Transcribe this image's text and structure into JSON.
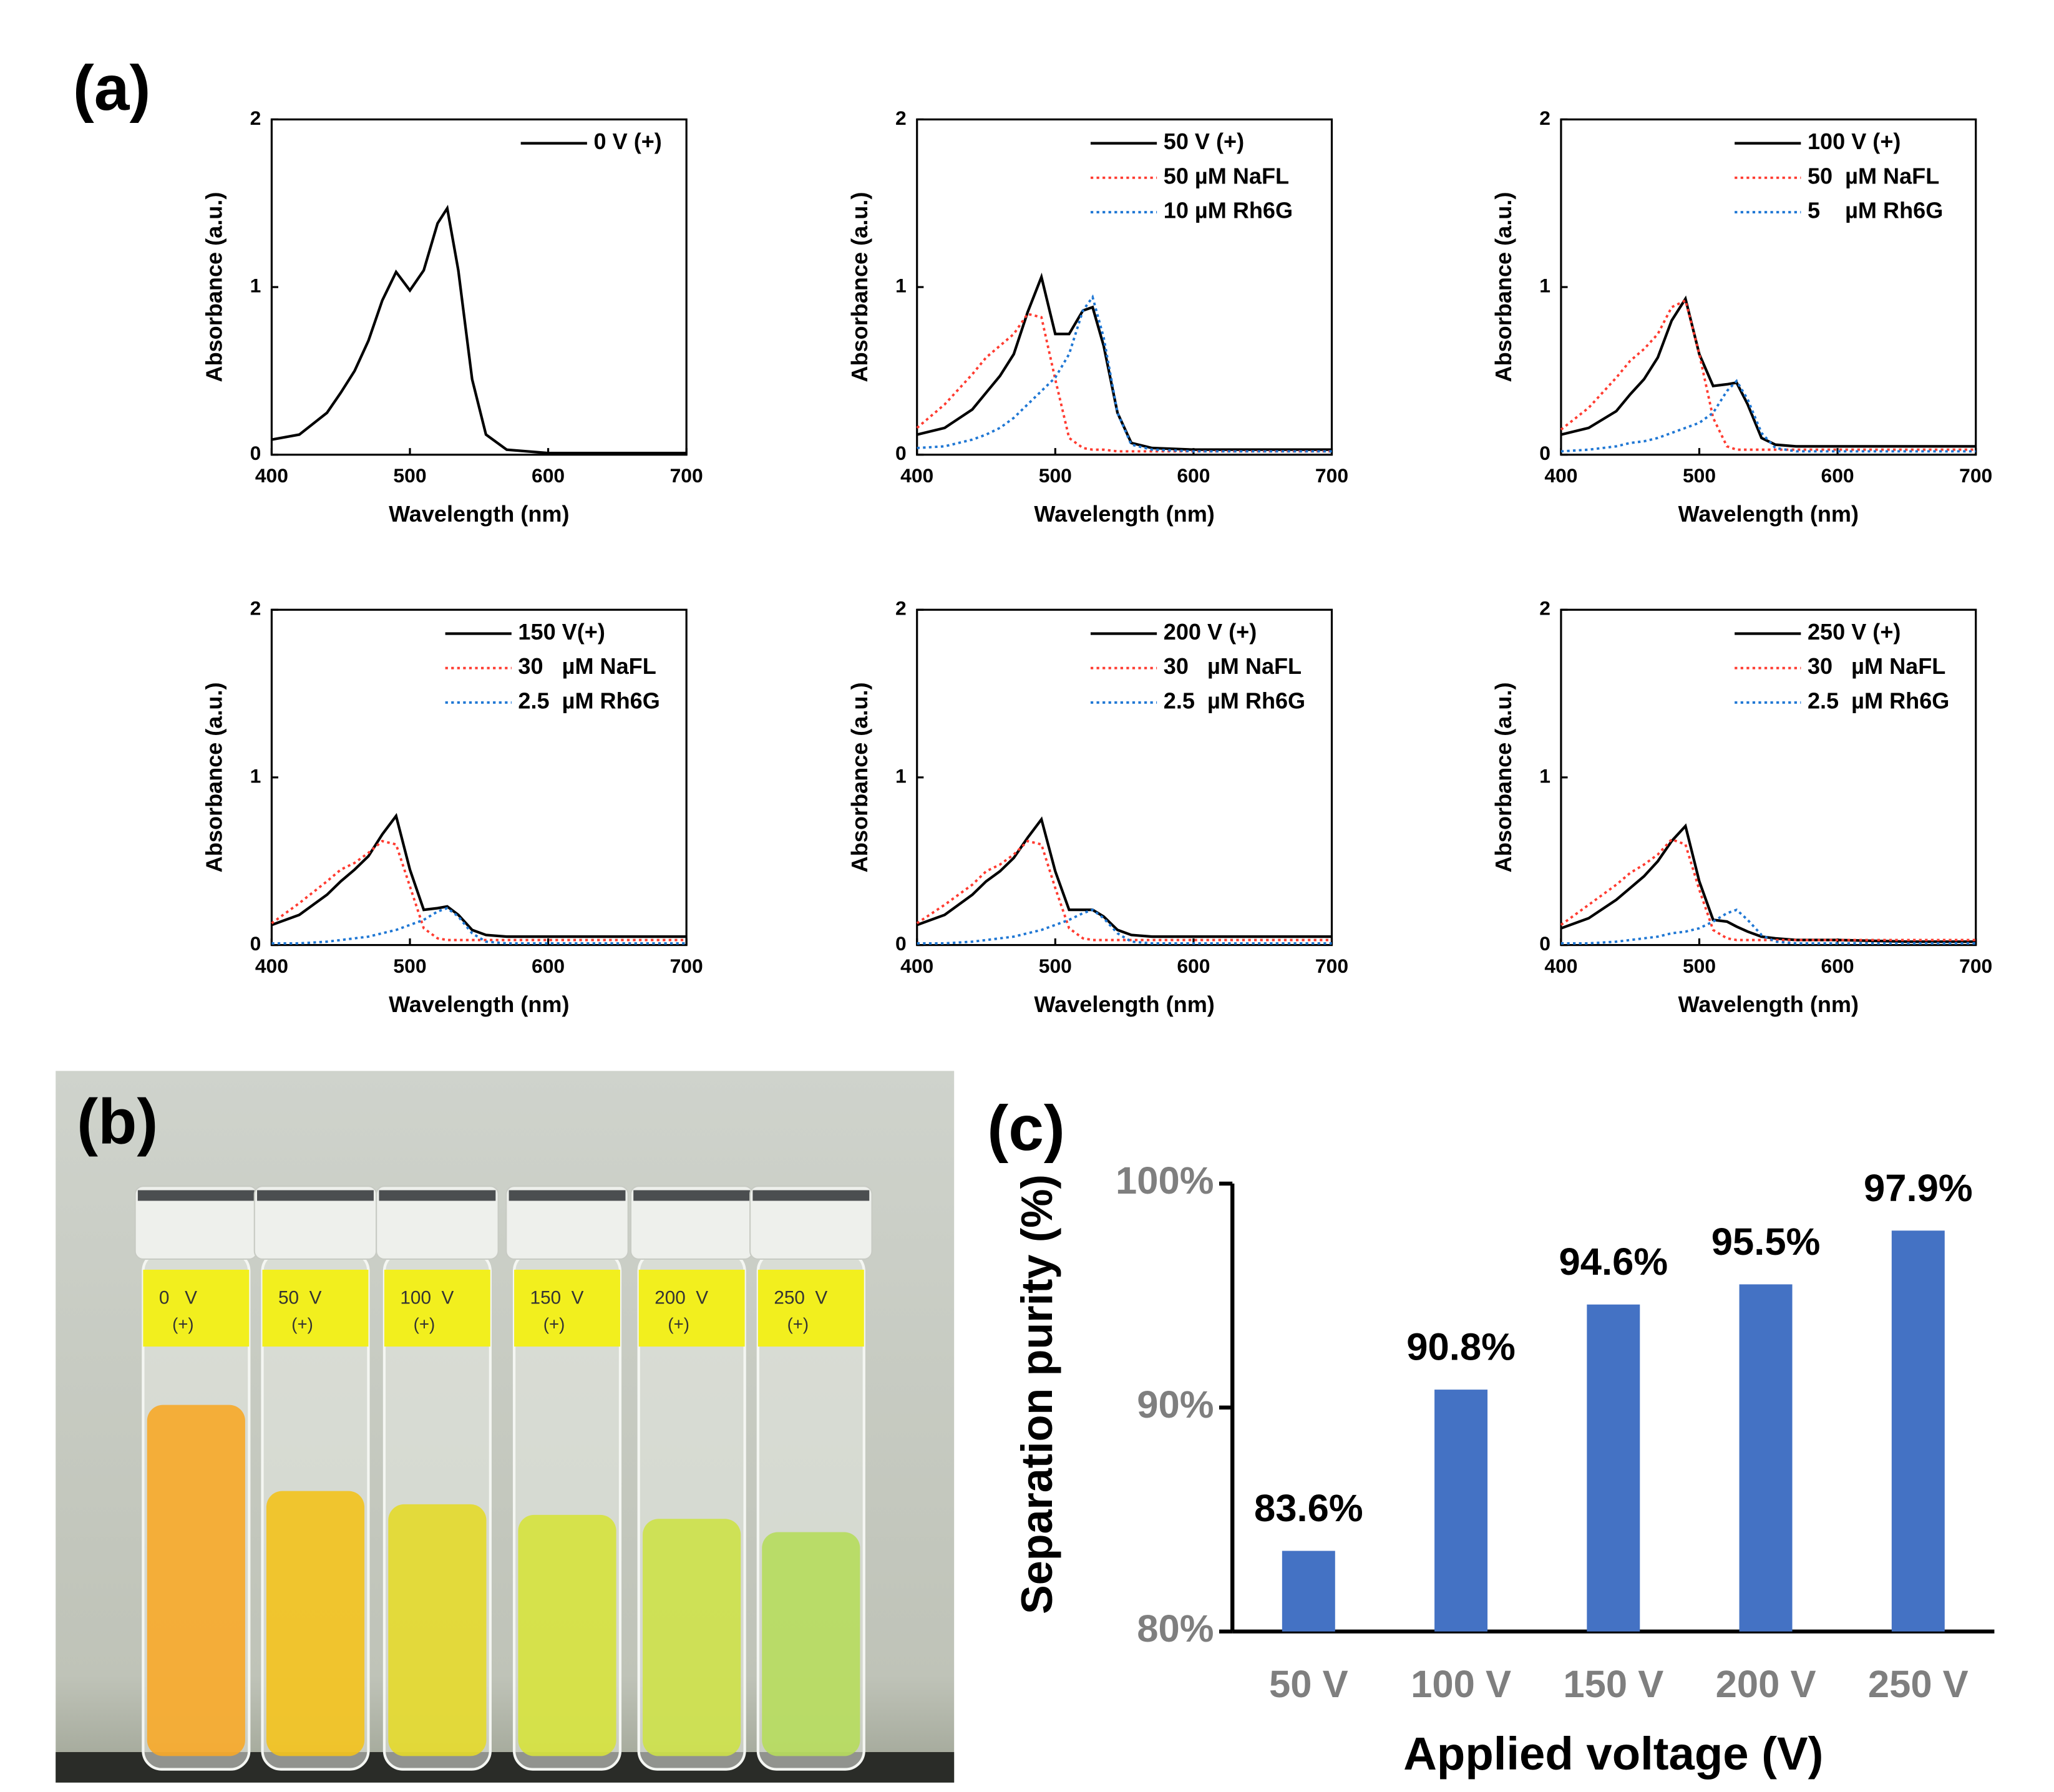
{
  "panel_labels": [
    "(a)",
    "(b)",
    "(c)"
  ],
  "photo": {
    "tube_labels": [
      [
        "0   V",
        "(+)"
      ],
      [
        "50  V",
        "(+)"
      ],
      [
        "100  V",
        "(+)"
      ],
      [
        "150  V",
        "(+)"
      ],
      [
        "200  V",
        "(+)"
      ],
      [
        "250  V",
        "(+)"
      ]
    ]
  },
  "chart_data": [
    {
      "type": "line",
      "xlabel": "Wavelength (nm)",
      "ylabel": "Absorbance (a.u.)",
      "xlim": [
        400,
        700
      ],
      "xticks": [
        400,
        500,
        600,
        700
      ],
      "ylim": [
        0,
        2
      ],
      "yticks": [
        0,
        1,
        2
      ],
      "legend": "upper right",
      "x": [
        400,
        420,
        440,
        450,
        460,
        470,
        480,
        490,
        500,
        510,
        520,
        527,
        535,
        545,
        555,
        570,
        600,
        650,
        700
      ],
      "series": [
        {
          "name": "0 V (+)",
          "color": "#000000",
          "dash": false,
          "values": [
            0.09,
            0.12,
            0.25,
            0.37,
            0.5,
            0.68,
            0.92,
            1.09,
            0.98,
            1.1,
            1.38,
            1.47,
            1.1,
            0.45,
            0.12,
            0.03,
            0.01,
            0.01,
            0.01
          ]
        }
      ]
    },
    {
      "type": "line",
      "xlabel": "Wavelength (nm)",
      "ylabel": "Absorbance (a.u.)",
      "xlim": [
        400,
        700
      ],
      "xticks": [
        400,
        500,
        600,
        700
      ],
      "ylim": [
        0,
        2
      ],
      "yticks": [
        0,
        1,
        2
      ],
      "legend": "upper right",
      "x": [
        400,
        420,
        440,
        450,
        460,
        470,
        480,
        490,
        500,
        510,
        520,
        527,
        535,
        545,
        555,
        570,
        600,
        650,
        700
      ],
      "series": [
        {
          "name": "50 V (+)",
          "color": "#000000",
          "dash": false,
          "values": [
            0.12,
            0.16,
            0.27,
            0.37,
            0.47,
            0.6,
            0.85,
            1.06,
            0.72,
            0.72,
            0.86,
            0.88,
            0.65,
            0.25,
            0.07,
            0.04,
            0.03,
            0.03,
            0.03
          ]
        },
        {
          "name": "50 µM NaFL",
          "color": "#ff3b30",
          "dash": true,
          "values": [
            0.16,
            0.3,
            0.48,
            0.58,
            0.65,
            0.72,
            0.84,
            0.82,
            0.45,
            0.1,
            0.04,
            0.03,
            0.03,
            0.02,
            0.02,
            0.02,
            0.02,
            0.02,
            0.02
          ]
        },
        {
          "name": "10 µM Rh6G",
          "color": "#1f77d4",
          "dash": true,
          "values": [
            0.04,
            0.05,
            0.09,
            0.12,
            0.16,
            0.22,
            0.3,
            0.38,
            0.46,
            0.6,
            0.86,
            0.94,
            0.7,
            0.25,
            0.06,
            0.03,
            0.02,
            0.02,
            0.02
          ]
        }
      ]
    },
    {
      "type": "line",
      "xlabel": "Wavelength (nm)",
      "ylabel": "Absorbance (a.u.)",
      "xlim": [
        400,
        700
      ],
      "xticks": [
        400,
        500,
        600,
        700
      ],
      "ylim": [
        0,
        2
      ],
      "yticks": [
        0,
        1,
        2
      ],
      "legend": "upper right",
      "x": [
        400,
        420,
        440,
        450,
        460,
        470,
        480,
        490,
        500,
        510,
        520,
        527,
        535,
        545,
        555,
        570,
        600,
        650,
        700
      ],
      "series": [
        {
          "name": "100 V (+)",
          "color": "#000000",
          "dash": false,
          "values": [
            0.12,
            0.16,
            0.26,
            0.36,
            0.45,
            0.58,
            0.8,
            0.93,
            0.6,
            0.41,
            0.42,
            0.43,
            0.3,
            0.1,
            0.06,
            0.05,
            0.05,
            0.05,
            0.05
          ]
        },
        {
          "name": "50  µM NaFL",
          "color": "#ff3b30",
          "dash": true,
          "values": [
            0.15,
            0.28,
            0.46,
            0.56,
            0.63,
            0.72,
            0.88,
            0.92,
            0.6,
            0.22,
            0.05,
            0.03,
            0.03,
            0.03,
            0.03,
            0.03,
            0.03,
            0.03,
            0.03
          ]
        },
        {
          "name": "5    µM Rh6G",
          "color": "#1f77d4",
          "dash": true,
          "values": [
            0.02,
            0.03,
            0.05,
            0.07,
            0.08,
            0.1,
            0.13,
            0.16,
            0.19,
            0.25,
            0.38,
            0.44,
            0.33,
            0.13,
            0.04,
            0.02,
            0.02,
            0.02,
            0.02
          ]
        }
      ]
    },
    {
      "type": "line",
      "xlabel": "Wavelength (nm)",
      "ylabel": "Absorbance (a.u.)",
      "xlim": [
        400,
        700
      ],
      "xticks": [
        400,
        500,
        600,
        700
      ],
      "ylim": [
        0,
        2
      ],
      "yticks": [
        0,
        1,
        2
      ],
      "legend": "upper right",
      "x": [
        400,
        420,
        440,
        450,
        460,
        470,
        480,
        490,
        500,
        510,
        520,
        527,
        535,
        545,
        555,
        570,
        600,
        650,
        700
      ],
      "series": [
        {
          "name": "150 V(+)",
          "color": "#000000",
          "dash": false,
          "values": [
            0.12,
            0.18,
            0.3,
            0.38,
            0.45,
            0.53,
            0.66,
            0.77,
            0.45,
            0.21,
            0.22,
            0.23,
            0.18,
            0.09,
            0.06,
            0.05,
            0.05,
            0.05,
            0.05
          ]
        },
        {
          "name": "30   µM NaFL",
          "color": "#ff3b30",
          "dash": true,
          "values": [
            0.13,
            0.25,
            0.38,
            0.45,
            0.49,
            0.55,
            0.62,
            0.6,
            0.35,
            0.1,
            0.04,
            0.03,
            0.03,
            0.03,
            0.03,
            0.03,
            0.03,
            0.03,
            0.03
          ]
        },
        {
          "name": "2.5  µM Rh6G",
          "color": "#1f77d4",
          "dash": true,
          "values": [
            0.01,
            0.01,
            0.02,
            0.03,
            0.04,
            0.05,
            0.07,
            0.09,
            0.12,
            0.15,
            0.2,
            0.22,
            0.17,
            0.07,
            0.02,
            0.01,
            0.01,
            0.01,
            0.01
          ]
        }
      ]
    },
    {
      "type": "line",
      "xlabel": "Wavelength (nm)",
      "ylabel": "Absorbance (a.u.)",
      "xlim": [
        400,
        700
      ],
      "xticks": [
        400,
        500,
        600,
        700
      ],
      "ylim": [
        0,
        2
      ],
      "yticks": [
        0,
        1,
        2
      ],
      "legend": "upper right",
      "x": [
        400,
        420,
        440,
        450,
        460,
        470,
        480,
        490,
        500,
        510,
        520,
        527,
        535,
        545,
        555,
        570,
        600,
        650,
        700
      ],
      "series": [
        {
          "name": "200 V (+)",
          "color": "#000000",
          "dash": false,
          "values": [
            0.12,
            0.18,
            0.3,
            0.38,
            0.44,
            0.52,
            0.64,
            0.75,
            0.44,
            0.21,
            0.21,
            0.21,
            0.17,
            0.09,
            0.06,
            0.05,
            0.05,
            0.05,
            0.05
          ]
        },
        {
          "name": "30   µM NaFL",
          "color": "#ff3b30",
          "dash": true,
          "values": [
            0.13,
            0.24,
            0.36,
            0.44,
            0.48,
            0.54,
            0.62,
            0.6,
            0.34,
            0.1,
            0.04,
            0.03,
            0.03,
            0.03,
            0.03,
            0.03,
            0.03,
            0.03,
            0.03
          ]
        },
        {
          "name": "2.5  µM Rh6G",
          "color": "#1f77d4",
          "dash": true,
          "values": [
            0.01,
            0.01,
            0.02,
            0.03,
            0.04,
            0.05,
            0.07,
            0.09,
            0.12,
            0.15,
            0.19,
            0.21,
            0.16,
            0.07,
            0.02,
            0.01,
            0.01,
            0.01,
            0.01
          ]
        }
      ]
    },
    {
      "type": "line",
      "xlabel": "Wavelength (nm)",
      "ylabel": "Absorbance (a.u.)",
      "xlim": [
        400,
        700
      ],
      "xticks": [
        400,
        500,
        600,
        700
      ],
      "ylim": [
        0,
        2
      ],
      "yticks": [
        0,
        1,
        2
      ],
      "legend": "upper right",
      "x": [
        400,
        420,
        440,
        450,
        460,
        470,
        480,
        490,
        500,
        510,
        520,
        527,
        535,
        545,
        555,
        570,
        600,
        650,
        700
      ],
      "series": [
        {
          "name": "250 V (+)",
          "color": "#000000",
          "dash": false,
          "values": [
            0.1,
            0.16,
            0.27,
            0.34,
            0.41,
            0.5,
            0.62,
            0.71,
            0.38,
            0.15,
            0.14,
            0.11,
            0.08,
            0.05,
            0.04,
            0.03,
            0.03,
            0.02,
            0.02
          ]
        },
        {
          "name": "30   µM NaFL",
          "color": "#ff3b30",
          "dash": true,
          "values": [
            0.12,
            0.24,
            0.36,
            0.43,
            0.48,
            0.54,
            0.63,
            0.6,
            0.33,
            0.09,
            0.04,
            0.03,
            0.03,
            0.03,
            0.03,
            0.03,
            0.03,
            0.03,
            0.03
          ]
        },
        {
          "name": "2.5  µM Rh6G",
          "color": "#1f77d4",
          "dash": true,
          "values": [
            0.01,
            0.01,
            0.02,
            0.03,
            0.04,
            0.05,
            0.07,
            0.08,
            0.1,
            0.14,
            0.19,
            0.21,
            0.15,
            0.06,
            0.02,
            0.01,
            0.01,
            0.01,
            0.01
          ]
        }
      ]
    },
    {
      "type": "bar",
      "xlabel": "Applied voltage (V)",
      "ylabel": "Separation purity (%)",
      "color": "#4472c4",
      "categories": [
        "50 V",
        "100 V",
        "150 V",
        "200 V",
        "250 V"
      ],
      "values": [
        83.6,
        90.8,
        94.6,
        95.5,
        97.9
      ],
      "value_labels": [
        "83.6%",
        "90.8%",
        "94.6%",
        "95.5%",
        "97.9%"
      ],
      "ylim": [
        80,
        100
      ],
      "yticks": [
        {
          "value": 80,
          "label": "80%"
        },
        {
          "value": 90,
          "label": "90%"
        },
        {
          "value": 100,
          "label": "100%"
        }
      ]
    }
  ]
}
